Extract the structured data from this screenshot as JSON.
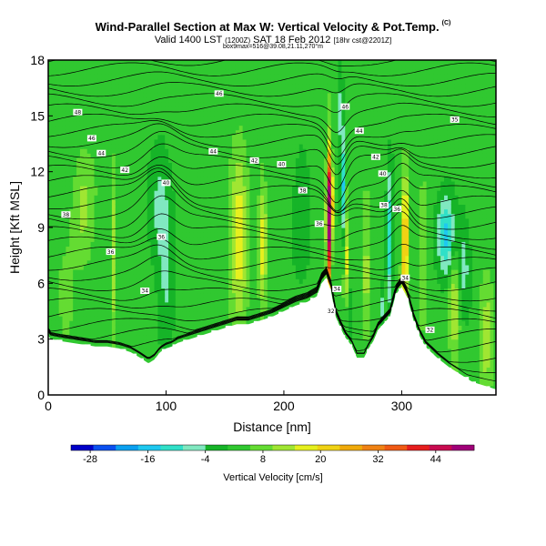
{
  "header": {
    "title": "Wind-Parallel Section at Max W: Vertical Velocity & Pot.Temp.",
    "title_mark": "(C)",
    "subtitle_main": "Valid 1400 LST",
    "subtitle_zulu": "(1200Z)",
    "subtitle_date": "SAT 18 Feb 2012",
    "subtitle_init": "[18hr cst@2201Z]",
    "subtitle2": "box9max=516@39.08,21.11,270°m"
  },
  "chart_data": {
    "type": "heatmap",
    "xlabel": "Distance [nm]",
    "ylabel": "Height [Kft MSL]",
    "xlim": [
      0,
      380
    ],
    "ylim": [
      0,
      18
    ],
    "xticks": [
      "0",
      "100",
      "200",
      "300"
    ],
    "xtick_values": [
      0,
      100,
      200,
      300
    ],
    "yticks": [
      "0",
      "3",
      "6",
      "9",
      "12",
      "15",
      "18"
    ],
    "ytick_values": [
      0,
      3,
      6,
      9,
      12,
      15,
      18
    ],
    "colorbar": {
      "label": "Vertical Velocity [cm/s]",
      "ticks": [
        "-28",
        "-16",
        "-4",
        "8",
        "20",
        "32",
        "44"
      ],
      "tick_values": [
        -28,
        -16,
        -4,
        8,
        20,
        32,
        44
      ],
      "range": [
        -32,
        52
      ],
      "colors": [
        "#0000c8",
        "#0a50f0",
        "#0aa0f0",
        "#1ec8f0",
        "#30e0c8",
        "#80e8c0",
        "#16b428",
        "#30c830",
        "#64dc32",
        "#a0e632",
        "#e6f01e",
        "#f0d214",
        "#f0aa0a",
        "#f08214",
        "#f05a14",
        "#e61e1e",
        "#c80a50",
        "#a00078"
      ]
    },
    "terrain": {
      "x": [
        0,
        2,
        10,
        20,
        30,
        40,
        50,
        60,
        70,
        78,
        85,
        90,
        95,
        100,
        105,
        110,
        120,
        130,
        140,
        150,
        160,
        170,
        180,
        190,
        200,
        210,
        220,
        228,
        232,
        236,
        240,
        244,
        248,
        252,
        258,
        262,
        268,
        272,
        276,
        280,
        290,
        295,
        300,
        305,
        310,
        315,
        320,
        330,
        340,
        350,
        355,
        360,
        365,
        370,
        375,
        380
      ],
      "height": [
        3.2,
        3.0,
        2.9,
        2.8,
        2.7,
        2.6,
        2.6,
        2.5,
        2.3,
        2.0,
        1.7,
        1.9,
        2.3,
        2.5,
        2.6,
        2.8,
        3.0,
        3.2,
        3.4,
        3.6,
        3.8,
        3.8,
        4.0,
        4.2,
        4.5,
        4.8,
        5.0,
        5.3,
        6.0,
        6.3,
        5.6,
        4.2,
        3.6,
        3.1,
        2.6,
        2.0,
        2.0,
        2.5,
        2.9,
        3.5,
        4.2,
        5.4,
        5.8,
        5.2,
        4.0,
        3.2,
        2.6,
        2.0,
        1.5,
        1.1,
        0.9,
        0.7,
        0.6,
        0.5,
        0.4,
        0.3
      ]
    },
    "velocity_features": [
      {
        "x": 55,
        "y": 7.5,
        "w": 12,
        "hw": 1.4,
        "hh": 4.0
      },
      {
        "x": 162,
        "y": 8.5,
        "w": 16,
        "hw": 6.0,
        "hh": 3.8
      },
      {
        "x": 182,
        "y": 8.0,
        "w": 14,
        "hw": 3.0,
        "hh": 3.2
      },
      {
        "x": 238,
        "y": 9.2,
        "w": 44,
        "hw": 1.5,
        "hh": 3.4
      },
      {
        "x": 240,
        "y": 10.4,
        "w": 22,
        "hw": 2.5,
        "hh": 1.8
      },
      {
        "x": 250,
        "y": 11.0,
        "w": -18,
        "hw": 1.6,
        "hh": 2.5
      },
      {
        "x": 248,
        "y": 15.5,
        "w": -8,
        "hw": 2.0,
        "hh": 2.0
      },
      {
        "x": 253,
        "y": 7.0,
        "w": 14,
        "hw": 2.0,
        "hh": 3.0
      },
      {
        "x": 270,
        "y": 7.0,
        "w": 10,
        "hw": 3.0,
        "hh": 3.0
      },
      {
        "x": 290,
        "y": 8.5,
        "w": -16,
        "hw": 2.2,
        "hh": 3.0
      },
      {
        "x": 303,
        "y": 8.5,
        "w": 40,
        "hw": 1.4,
        "hh": 3.0
      },
      {
        "x": 300,
        "y": 5.0,
        "w": 12,
        "hw": 2.0,
        "hh": 1.5
      },
      {
        "x": 318,
        "y": 7.5,
        "w": 10,
        "hw": 2.5,
        "hh": 3.0
      },
      {
        "x": 338,
        "y": 8.6,
        "w": -18,
        "hw": 6.0,
        "hh": 1.8
      },
      {
        "x": 352,
        "y": 7.0,
        "w": -10,
        "hw": 5.0,
        "hh": 2.0
      },
      {
        "x": 345,
        "y": 5.0,
        "w": 14,
        "hw": 4.0,
        "hh": 2.5
      },
      {
        "x": 372,
        "y": 3.0,
        "w": 10,
        "hw": 5.0,
        "hh": 3.0
      },
      {
        "x": 95,
        "y": 10.5,
        "w": -8,
        "hw": 8.0,
        "hh": 2.5
      },
      {
        "x": 100,
        "y": 5.5,
        "w": -7,
        "hw": 6.0,
        "hh": 3.0
      },
      {
        "x": 30,
        "y": 10.0,
        "w": 9,
        "hw": 8.0,
        "hh": 2.5
      },
      {
        "x": 15,
        "y": 5.0,
        "w": 6,
        "hw": 6.0,
        "hh": 2.0
      },
      {
        "x": 215,
        "y": 10.0,
        "w": -6,
        "hw": 6.0,
        "hh": 3.0
      },
      {
        "x": 255,
        "y": 4.5,
        "w": -10,
        "hw": 2.0,
        "hh": 1.2
      },
      {
        "x": 283,
        "y": 4.8,
        "w": -8,
        "hw": 1.5,
        "hh": 1.0
      }
    ],
    "theta_labels": [
      {
        "text": "48",
        "x": 25,
        "y": 15.2
      },
      {
        "text": "46",
        "x": 145,
        "y": 16.2
      },
      {
        "text": "46",
        "x": 252,
        "y": 15.5
      },
      {
        "text": "46",
        "x": 37,
        "y": 13.8
      },
      {
        "text": "44",
        "x": 45,
        "y": 13.0
      },
      {
        "text": "44",
        "x": 140,
        "y": 13.1
      },
      {
        "text": "42",
        "x": 65,
        "y": 12.1
      },
      {
        "text": "42",
        "x": 175,
        "y": 12.6
      },
      {
        "text": "40",
        "x": 100,
        "y": 11.4
      },
      {
        "text": "40",
        "x": 198,
        "y": 12.4
      },
      {
        "text": "38",
        "x": 15,
        "y": 9.7
      },
      {
        "text": "38",
        "x": 216,
        "y": 11.0
      },
      {
        "text": "36",
        "x": 96,
        "y": 8.5
      },
      {
        "text": "36",
        "x": 230,
        "y": 9.2
      },
      {
        "text": "36",
        "x": 53,
        "y": 7.7
      },
      {
        "text": "34",
        "x": 82,
        "y": 5.6
      },
      {
        "text": "34",
        "x": 245,
        "y": 5.7
      },
      {
        "text": "32",
        "x": 240,
        "y": 4.5
      },
      {
        "text": "44",
        "x": 264,
        "y": 14.2
      },
      {
        "text": "42",
        "x": 278,
        "y": 12.8
      },
      {
        "text": "40",
        "x": 284,
        "y": 11.9
      },
      {
        "text": "38",
        "x": 285,
        "y": 10.2
      },
      {
        "text": "36",
        "x": 296,
        "y": 10.0
      },
      {
        "text": "34",
        "x": 303,
        "y": 6.3
      },
      {
        "text": "32",
        "x": 324,
        "y": 3.5
      },
      {
        "text": "35",
        "x": 345,
        "y": 14.8
      }
    ]
  }
}
